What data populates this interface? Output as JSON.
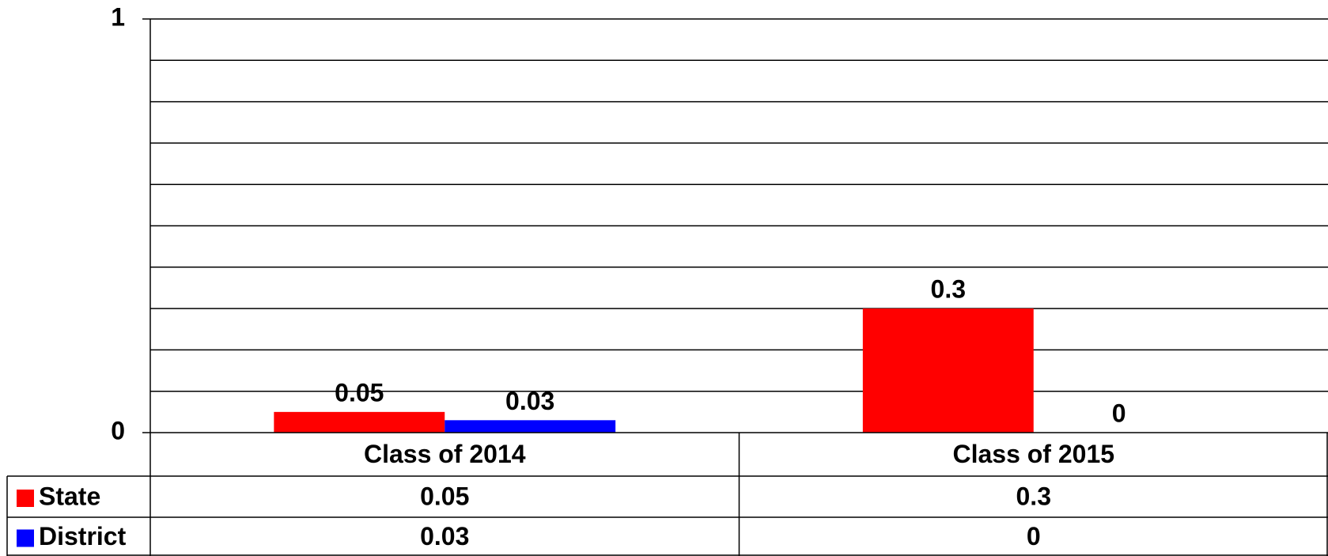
{
  "chart_data": {
    "type": "bar",
    "categories": [
      "Class of 2014",
      "Class of 2015"
    ],
    "series": [
      {
        "name": "State",
        "color": "#ff0000",
        "values": [
          0.05,
          0.3
        ]
      },
      {
        "name": "District",
        "color": "#0000ff",
        "values": [
          0.03,
          0
        ]
      }
    ],
    "ylim": [
      0,
      1
    ],
    "yticks": [
      0,
      1
    ],
    "grid_lines": [
      0.1,
      0.2,
      0.3,
      0.4,
      0.5,
      0.6,
      0.7,
      0.8,
      0.9,
      1
    ],
    "data_table": true
  }
}
